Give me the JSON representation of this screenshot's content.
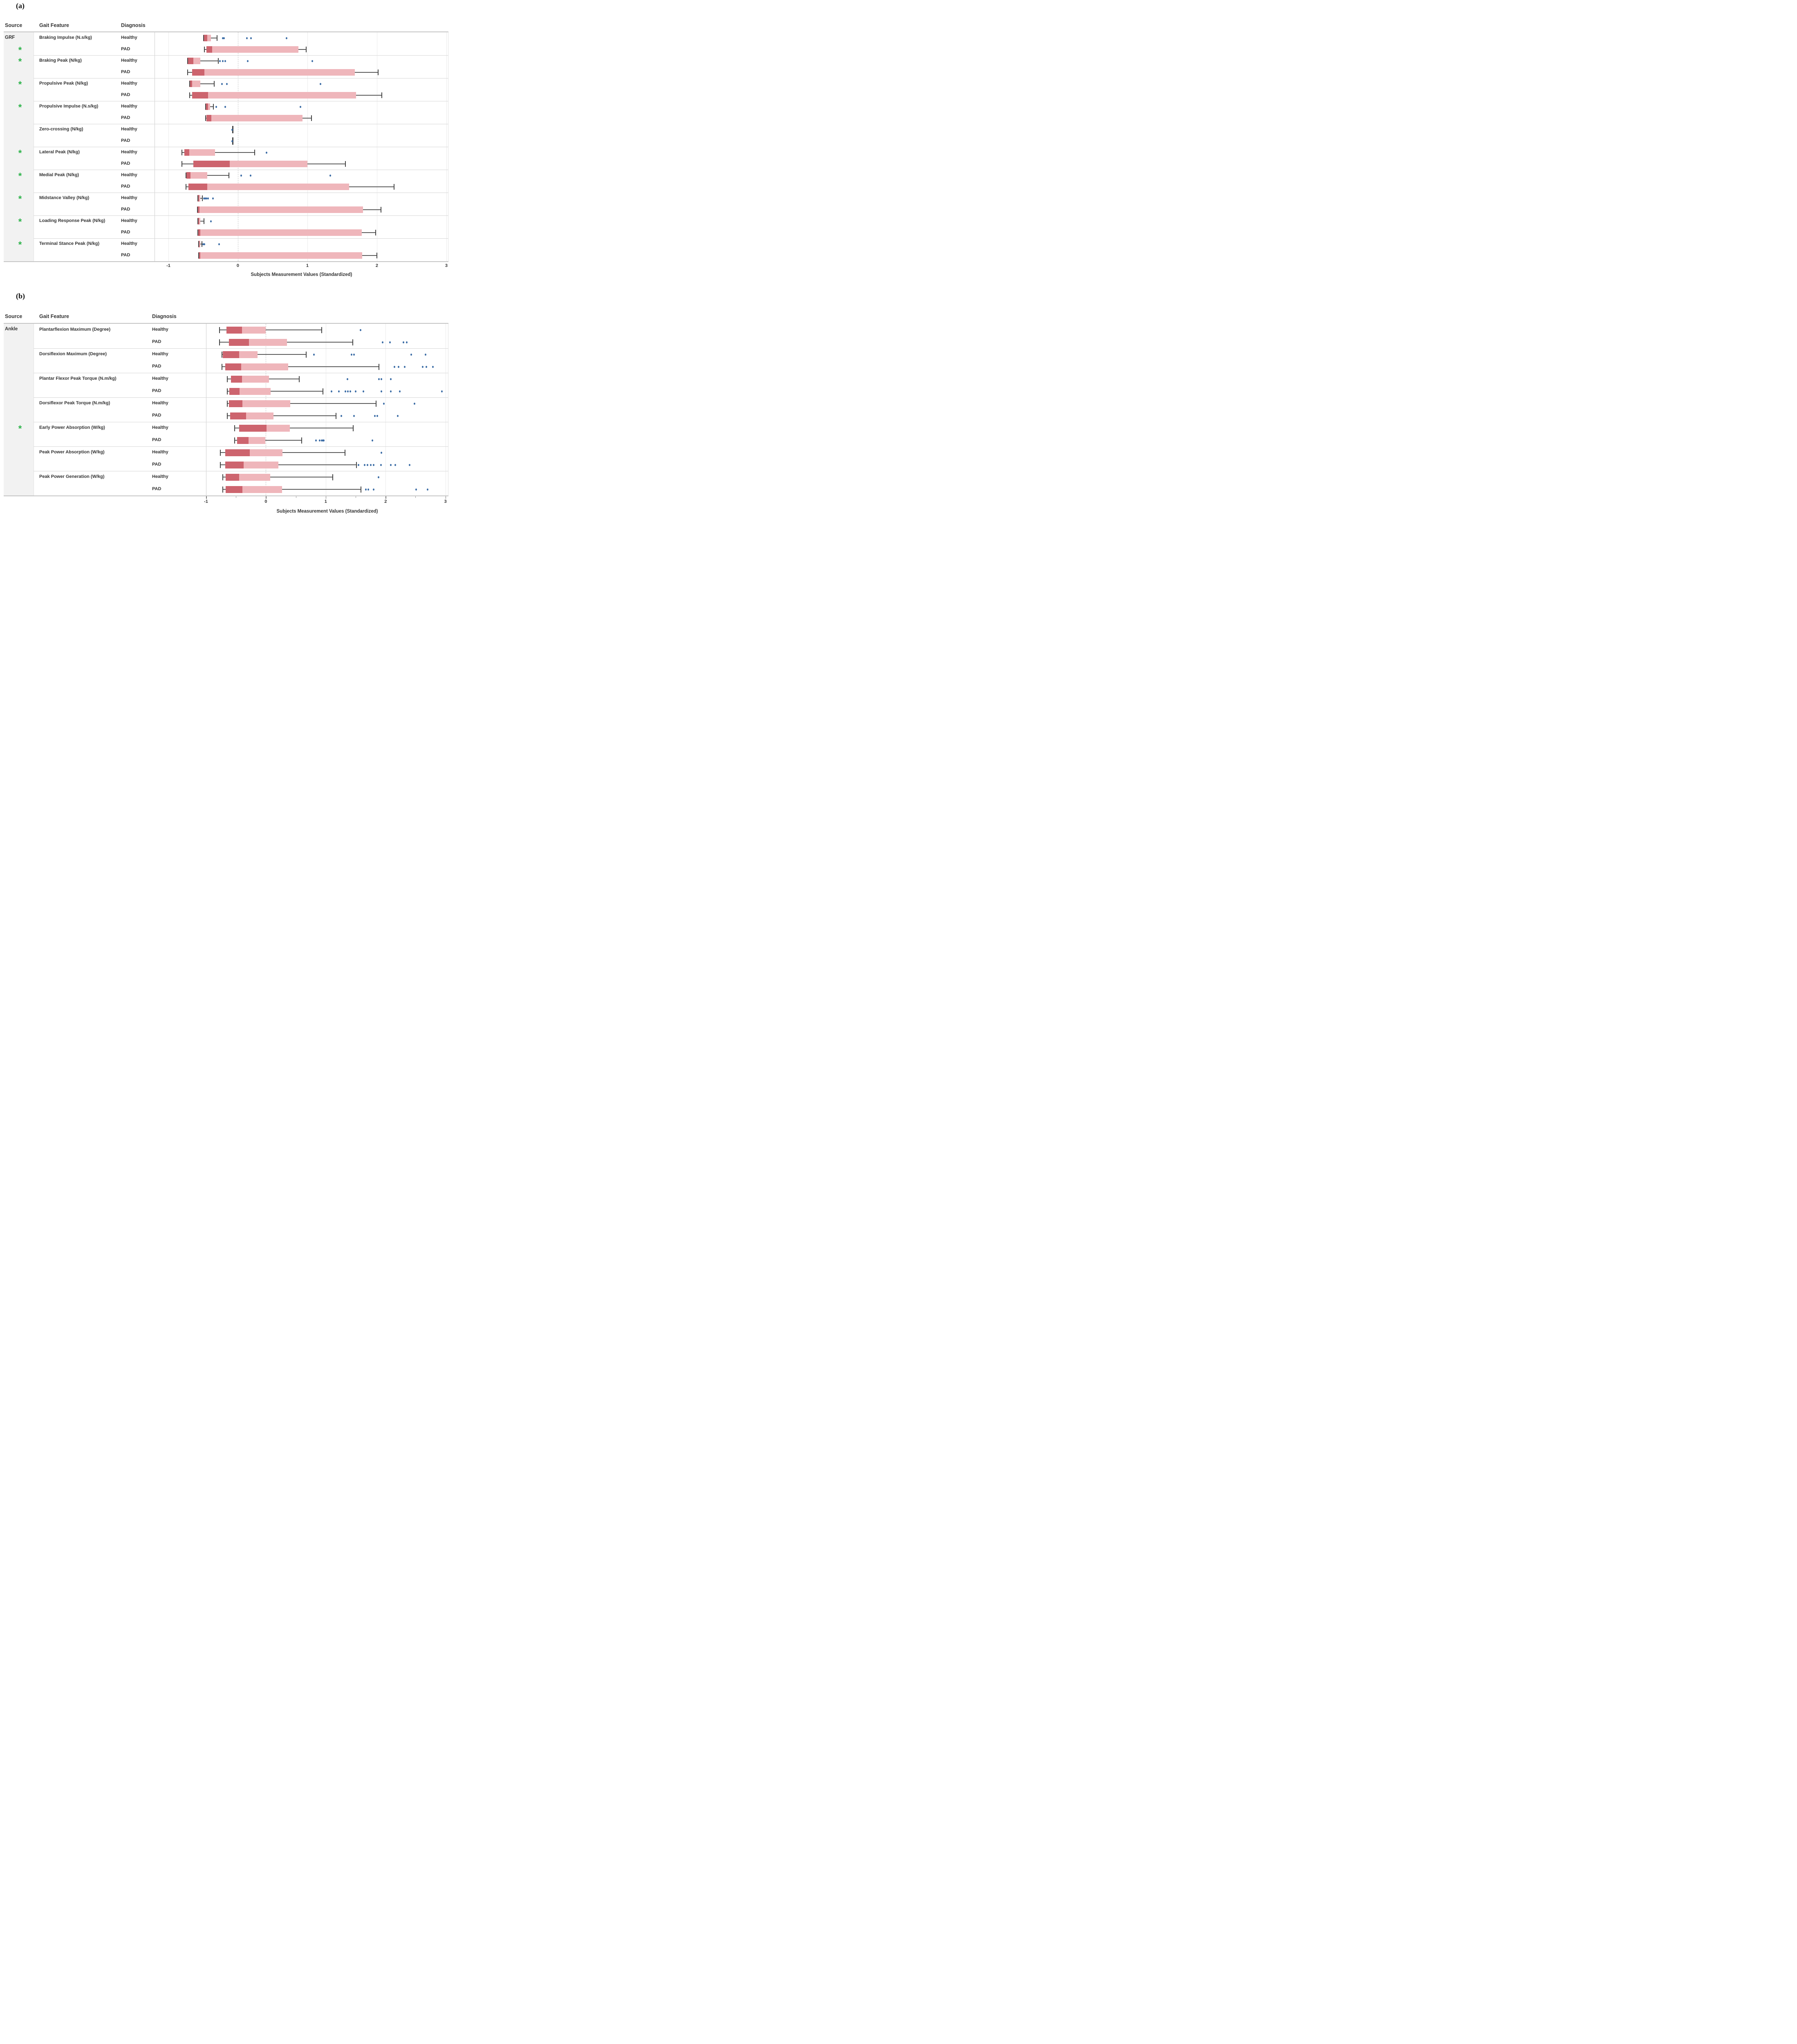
{
  "chart_data": {
    "type": "boxplot",
    "orientation": "horizontal",
    "axis_title": "Subjects Measurement Values (Standardized)",
    "columns": {
      "source": "Source",
      "feature": "Gait Feature",
      "diagnosis": "Diagnosis"
    },
    "diagnoses": [
      "Healthy",
      "PAD"
    ],
    "significance_marker": "*",
    "legend_position": "none",
    "grid": true,
    "panels": [
      {
        "label": "(a)",
        "source": "GRF",
        "axis": {
          "ticks": [
            -1,
            0,
            1,
            2,
            3
          ],
          "min": -1.2,
          "max": 3.03
        },
        "features": [
          {
            "name": "Braking Impulse (N.s/kg)",
            "significant": true,
            "asterisk_row": 1,
            "boxes": [
              {
                "whisker_low": -0.5,
                "q1": -0.5,
                "median": -0.44,
                "q3": -0.39,
                "whisker_high": -0.3,
                "outliers": [
                  -0.22,
                  -0.2,
                  0.13,
                  0.19,
                  0.7
                ]
              },
              {
                "whisker_low": -0.49,
                "q1": -0.45,
                "median": -0.37,
                "q3": 0.87,
                "whisker_high": 0.98,
                "outliers": []
              }
            ]
          },
          {
            "name": "Braking Peak (N/kg)",
            "significant": true,
            "asterisk_row": 0,
            "boxes": [
              {
                "whisker_low": -0.73,
                "q1": -0.73,
                "median": -0.64,
                "q3": -0.54,
                "whisker_high": -0.28,
                "outliers": [
                  -0.26,
                  -0.22,
                  -0.18,
                  0.14,
                  1.07
                ]
              },
              {
                "whisker_low": -0.73,
                "q1": -0.66,
                "median": -0.48,
                "q3": 1.68,
                "whisker_high": 2.02,
                "outliers": []
              }
            ]
          },
          {
            "name": "Propulsive Peak (N/kg)",
            "significant": true,
            "asterisk_row": 0,
            "boxes": [
              {
                "whisker_low": -0.7,
                "q1": -0.7,
                "median": -0.66,
                "q3": -0.54,
                "whisker_high": -0.34,
                "outliers": [
                  -0.23,
                  -0.16,
                  1.19
                ]
              },
              {
                "whisker_low": -0.7,
                "q1": -0.66,
                "median": -0.43,
                "q3": 1.7,
                "whisker_high": 2.07,
                "outliers": []
              }
            ]
          },
          {
            "name": "Propulsive Impulse (N.s/kg)",
            "significant": true,
            "asterisk_row": 0,
            "boxes": [
              {
                "whisker_low": -0.47,
                "q1": -0.47,
                "median": -0.43,
                "q3": -0.4,
                "whisker_high": -0.35,
                "outliers": [
                  -0.31,
                  -0.18,
                  0.9
                ]
              },
              {
                "whisker_low": -0.47,
                "q1": -0.45,
                "median": -0.38,
                "q3": 0.93,
                "whisker_high": 1.06,
                "outliers": []
              }
            ]
          },
          {
            "name": "Zero-crossing (N/kg)",
            "significant": false,
            "asterisk_row": 0,
            "boxes": [
              {
                "whisker_low": -0.08,
                "q1": -0.08,
                "median": -0.08,
                "q3": -0.08,
                "whisker_high": -0.08,
                "outliers": [
                  -0.08
                ]
              },
              {
                "whisker_low": -0.08,
                "q1": -0.08,
                "median": -0.08,
                "q3": -0.08,
                "whisker_high": -0.08,
                "outliers": [
                  -0.08
                ]
              }
            ]
          },
          {
            "name": "Lateral Peak (N/kg)",
            "significant": true,
            "asterisk_row": 0,
            "boxes": [
              {
                "whisker_low": -0.81,
                "q1": -0.77,
                "median": -0.7,
                "q3": -0.33,
                "whisker_high": 0.24,
                "outliers": [
                  0.41
                ]
              },
              {
                "whisker_low": -0.81,
                "q1": -0.64,
                "median": -0.12,
                "q3": 1.0,
                "whisker_high": 1.55,
                "outliers": []
              }
            ]
          },
          {
            "name": "Medial Peak (N/kg)",
            "significant": true,
            "asterisk_row": 0,
            "boxes": [
              {
                "whisker_low": -0.75,
                "q1": -0.74,
                "median": -0.68,
                "q3": -0.44,
                "whisker_high": -0.13,
                "outliers": [
                  0.05,
                  0.18,
                  1.33
                ]
              },
              {
                "whisker_low": -0.75,
                "q1": -0.71,
                "median": -0.44,
                "q3": 1.6,
                "whisker_high": 2.25,
                "outliers": []
              }
            ]
          },
          {
            "name": "Midstance Valley (N/kg)",
            "significant": true,
            "asterisk_row": 0,
            "boxes": [
              {
                "whisker_low": -0.58,
                "q1": -0.58,
                "median": -0.56,
                "q3": -0.54,
                "whisker_high": -0.51,
                "outliers": [
                  -0.49,
                  -0.47,
                  -0.45,
                  -0.43,
                  -0.36
                ]
              },
              {
                "whisker_low": -0.59,
                "q1": -0.59,
                "median": -0.55,
                "q3": 1.8,
                "whisker_high": 2.06,
                "outliers": []
              }
            ]
          },
          {
            "name": "Loading Response Peak (N/kg)",
            "significant": true,
            "asterisk_row": 0,
            "boxes": [
              {
                "whisker_low": -0.58,
                "q1": -0.58,
                "median": -0.56,
                "q3": -0.54,
                "whisker_high": -0.49,
                "outliers": [
                  -0.39
                ]
              },
              {
                "whisker_low": -0.58,
                "q1": -0.58,
                "median": -0.54,
                "q3": 1.78,
                "whisker_high": 1.98,
                "outliers": []
              }
            ]
          },
          {
            "name": "Terminal Stance Peak (N/kg)",
            "significant": true,
            "asterisk_row": 0,
            "boxes": [
              {
                "whisker_low": -0.57,
                "q1": -0.57,
                "median": -0.55,
                "q3": -0.54,
                "whisker_high": -0.52,
                "outliers": [
                  -0.5,
                  -0.48,
                  -0.27
                ]
              },
              {
                "whisker_low": -0.57,
                "q1": -0.57,
                "median": -0.54,
                "q3": 1.79,
                "whisker_high": 2.0,
                "outliers": []
              }
            ]
          }
        ]
      },
      {
        "label": "(b)",
        "source": "Ankle",
        "axis": {
          "ticks": [
            -1,
            0,
            1,
            2,
            3
          ],
          "minor_ticks": [
            -0.5,
            0.5,
            1.5,
            2.5
          ],
          "min": -1.0,
          "max": 3.05
        },
        "features": [
          {
            "name": "Plantarflexion Maximum (Degree)",
            "significant": false,
            "asterisk_row": 0,
            "boxes": [
              {
                "whisker_low": -0.78,
                "q1": -0.66,
                "median": -0.4,
                "q3": 0.0,
                "whisker_high": 0.93,
                "outliers": [
                  1.58
                ]
              },
              {
                "whisker_low": -0.78,
                "q1": -0.62,
                "median": -0.28,
                "q3": 0.35,
                "whisker_high": 1.45,
                "outliers": [
                  1.95,
                  2.07,
                  2.3,
                  2.35
                ]
              }
            ]
          },
          {
            "name": "Dorsiflexion Maximum (Degree)",
            "significant": false,
            "asterisk_row": 0,
            "boxes": [
              {
                "whisker_low": -0.74,
                "q1": -0.72,
                "median": -0.45,
                "q3": -0.14,
                "whisker_high": 0.67,
                "outliers": [
                  0.8,
                  1.43,
                  1.47,
                  2.43,
                  2.67
                ]
              },
              {
                "whisker_low": -0.74,
                "q1": -0.68,
                "median": -0.41,
                "q3": 0.37,
                "whisker_high": 1.89,
                "outliers": [
                  2.15,
                  2.22,
                  2.32,
                  2.62,
                  2.68,
                  2.79
                ]
              }
            ]
          },
          {
            "name": "Plantar Flexor Peak Torque (N.m/kg)",
            "significant": false,
            "asterisk_row": 0,
            "boxes": [
              {
                "whisker_low": -0.65,
                "q1": -0.58,
                "median": -0.4,
                "q3": 0.05,
                "whisker_high": 0.56,
                "outliers": [
                  1.36,
                  1.89,
                  1.93,
                  2.09
                ]
              },
              {
                "whisker_low": -0.65,
                "q1": -0.61,
                "median": -0.44,
                "q3": 0.08,
                "whisker_high": 0.95,
                "outliers": [
                  1.1,
                  1.22,
                  1.33,
                  1.37,
                  1.41,
                  1.5,
                  1.63,
                  1.93,
                  2.09,
                  2.24,
                  2.94
                ]
              }
            ]
          },
          {
            "name": "Dorsiflexor Peak Torque (N.m/kg)",
            "significant": false,
            "asterisk_row": 0,
            "boxes": [
              {
                "whisker_low": -0.65,
                "q1": -0.62,
                "median": -0.39,
                "q3": 0.41,
                "whisker_high": 1.84,
                "outliers": [
                  1.97,
                  2.48
                ]
              },
              {
                "whisker_low": -0.65,
                "q1": -0.6,
                "median": -0.33,
                "q3": 0.13,
                "whisker_high": 1.17,
                "outliers": [
                  1.26,
                  1.47,
                  1.82,
                  1.86,
                  2.2
                ]
              }
            ]
          },
          {
            "name": "Early Power Absorption (W/kg)",
            "significant": true,
            "asterisk_row": 0,
            "boxes": [
              {
                "whisker_low": -0.53,
                "q1": -0.45,
                "median": 0.01,
                "q3": 0.4,
                "whisker_high": 1.46,
                "outliers": []
              },
              {
                "whisker_low": -0.53,
                "q1": -0.48,
                "median": -0.29,
                "q3": -0.01,
                "whisker_high": 0.6,
                "outliers": [
                  0.84,
                  0.9,
                  0.93,
                  0.95,
                  0.97,
                  1.78
                ]
              }
            ]
          },
          {
            "name": "Peak Power Absorption (W/kg)",
            "significant": false,
            "asterisk_row": 0,
            "boxes": [
              {
                "whisker_low": -0.77,
                "q1": -0.68,
                "median": -0.27,
                "q3": 0.28,
                "whisker_high": 1.32,
                "outliers": [
                  1.93
                ]
              },
              {
                "whisker_low": -0.77,
                "q1": -0.68,
                "median": -0.37,
                "q3": 0.21,
                "whisker_high": 1.51,
                "outliers": [
                  1.55,
                  1.65,
                  1.7,
                  1.75,
                  1.8,
                  1.92,
                  2.09,
                  2.16,
                  2.4
                ]
              }
            ]
          },
          {
            "name": "Peak Power Generation (W/kg)",
            "significant": false,
            "asterisk_row": 0,
            "boxes": [
              {
                "whisker_low": -0.73,
                "q1": -0.67,
                "median": -0.45,
                "q3": 0.07,
                "whisker_high": 1.12,
                "outliers": [
                  1.88
                ]
              },
              {
                "whisker_low": -0.73,
                "q1": -0.67,
                "median": -0.39,
                "q3": 0.27,
                "whisker_high": 1.59,
                "outliers": [
                  1.67,
                  1.71,
                  1.8,
                  2.51,
                  2.7
                ]
              }
            ]
          }
        ]
      }
    ],
    "colors": {
      "box_lower_quartile": "#cd646e",
      "box_upper_quartile": "#efb6bb",
      "outlier": "#3c6da6",
      "whisker": "#595959",
      "cap": "#434343",
      "gridline": "#ebebeb",
      "zero_line": "#c6c6c6",
      "separator": "#d6d6d6",
      "header_line": "#c4c4c4",
      "source_band": "#f2f2f2",
      "asterisk": "#2db34a",
      "chart_border": "#cfcfcf"
    }
  }
}
